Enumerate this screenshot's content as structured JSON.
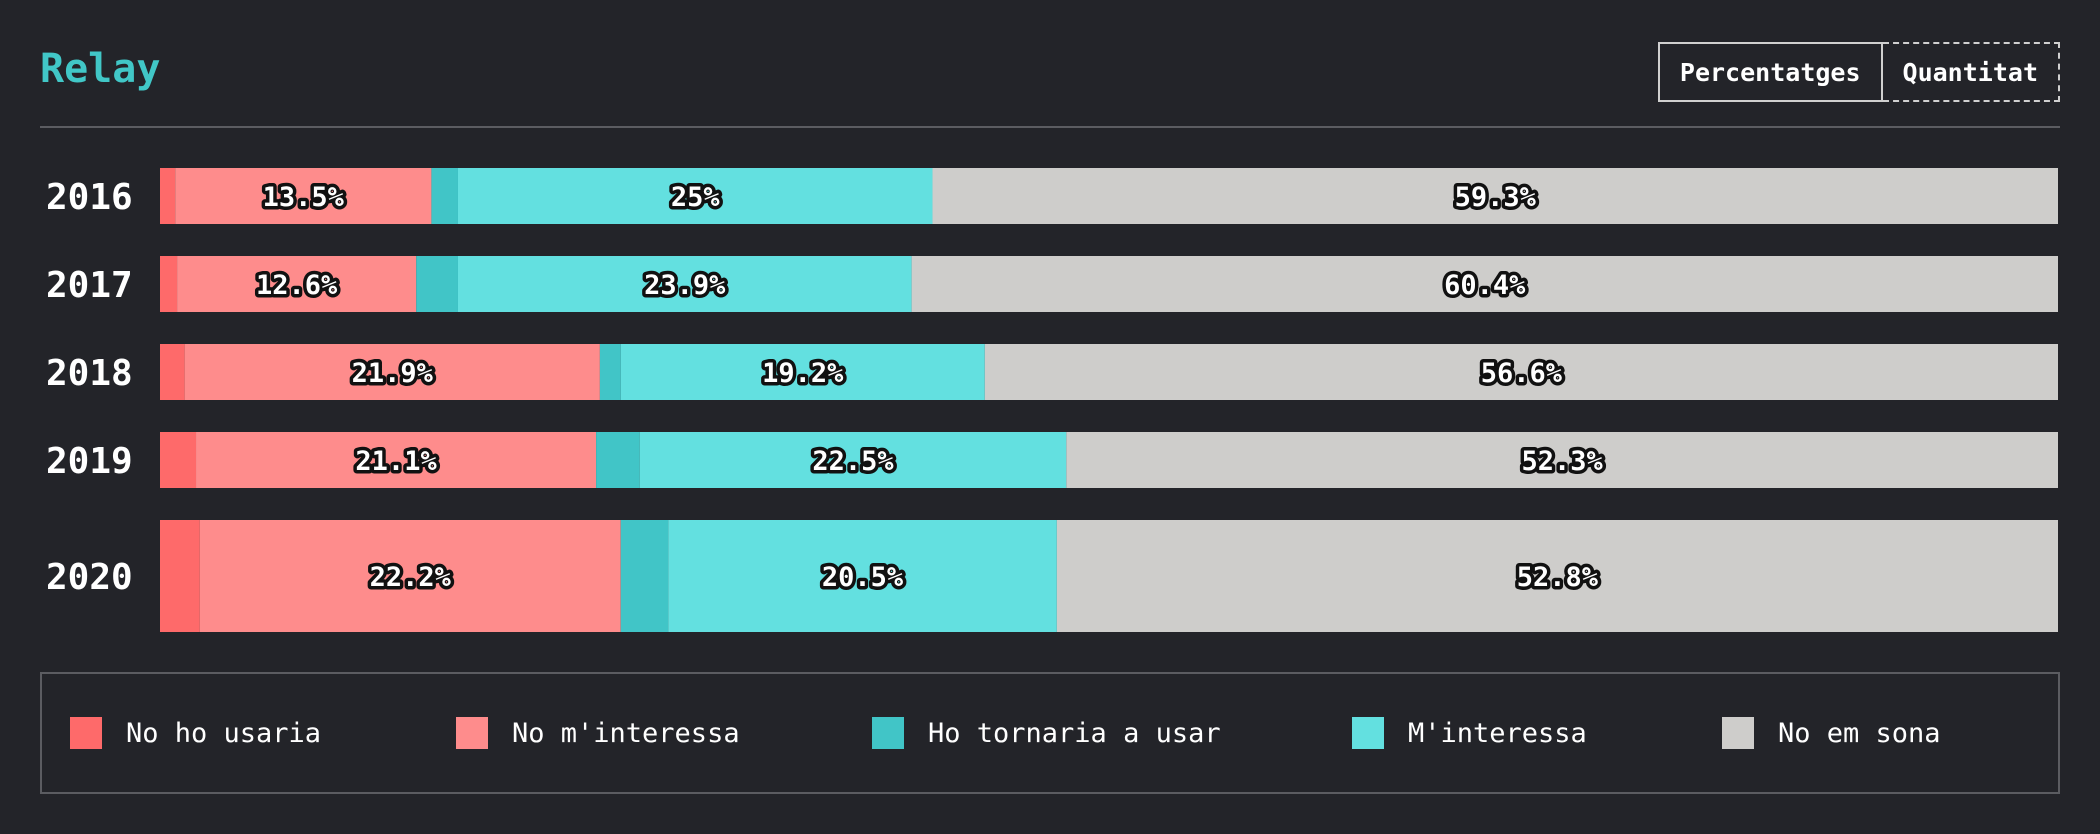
{
  "header": {
    "title": "Relay",
    "toggle": {
      "percent_label": "Percentatges",
      "count_label": "Quantitat"
    }
  },
  "chart_data": {
    "type": "bar",
    "orientation": "horizontal",
    "stacked": true,
    "normalized": true,
    "categories": [
      "2016",
      "2017",
      "2018",
      "2019",
      "2020"
    ],
    "series": [
      {
        "name": "No ho usaria",
        "color": "#fe6a6a",
        "values": [
          0.8,
          0.9,
          1.3,
          1.9,
          2.1
        ]
      },
      {
        "name": "No m'interessa",
        "color": "#fe8c8c",
        "values": [
          13.5,
          12.6,
          21.9,
          21.1,
          22.2
        ]
      },
      {
        "name": "Ho tornaria a usar",
        "color": "#41c5c7",
        "values": [
          1.4,
          2.2,
          1.1,
          2.3,
          2.5
        ]
      },
      {
        "name": "M'interessa",
        "color": "#63e0e0",
        "values": [
          25,
          23.9,
          19.2,
          22.5,
          20.5
        ]
      },
      {
        "name": "No em sona",
        "color": "#cecdcb",
        "values": [
          59.3,
          60.4,
          56.6,
          52.3,
          52.8
        ]
      }
    ],
    "data_labels": [
      [
        "",
        "13.5%",
        "",
        "25%",
        "59.3%"
      ],
      [
        "",
        "12.6%",
        "",
        "23.9%",
        "60.4%"
      ],
      [
        "",
        "21.9%",
        "",
        "19.2%",
        "56.6%"
      ],
      [
        "",
        "21.1%",
        "",
        "22.5%",
        "52.3%"
      ],
      [
        "",
        "22.2%",
        "",
        "20.5%",
        "52.8%"
      ]
    ],
    "xlim": [
      0,
      100
    ],
    "grid": false,
    "legend_position": "bottom"
  }
}
